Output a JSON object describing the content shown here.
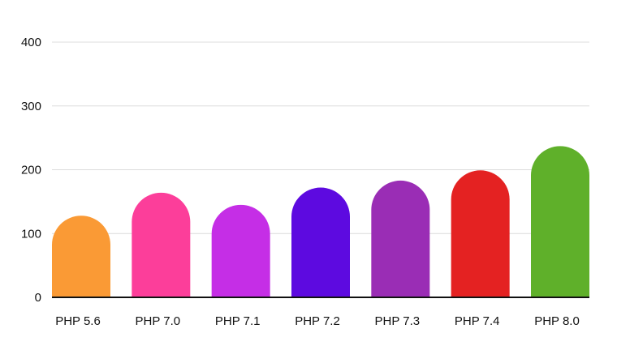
{
  "chart_data": {
    "type": "bar",
    "title": "",
    "xlabel": "",
    "ylabel": "",
    "categories": [
      "PHP 5.6",
      "PHP 7.0",
      "PHP 7.1",
      "PHP 7.2",
      "PHP 7.3",
      "PHP 7.4",
      "PHP 8.0"
    ],
    "values": [
      128,
      164,
      145,
      172,
      183,
      199,
      237
    ],
    "colors": [
      "#fa9a35",
      "#fc3e9a",
      "#c52ee6",
      "#5d0ae0",
      "#9a2db5",
      "#e42222",
      "#5fb02a"
    ],
    "ylim": [
      0,
      400
    ],
    "yticks": [
      "0",
      "100",
      "200",
      "300",
      "400"
    ],
    "grid": true,
    "legend": "none"
  }
}
